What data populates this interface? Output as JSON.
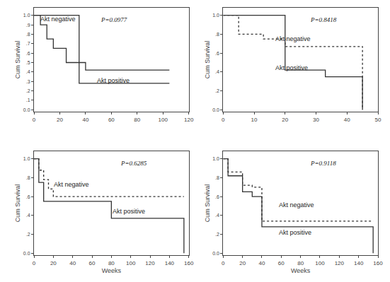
{
  "chart_data": [
    {
      "type": "line",
      "ylabel": "Cum Survival",
      "grid": false,
      "xlim": [
        0,
        120
      ],
      "ylim": [
        -0.02,
        1.08
      ],
      "xticks": [
        0,
        20,
        40,
        60,
        80,
        100,
        120
      ],
      "yticks": [
        {
          "value": 0.0,
          "label": "0.0"
        },
        {
          "value": 0.1,
          "label": ".1"
        },
        {
          "value": 0.2,
          "label": ".2"
        },
        {
          "value": 0.3,
          "label": ".3"
        },
        {
          "value": 0.4,
          "label": ".4"
        },
        {
          "value": 0.5,
          "label": ".5"
        },
        {
          "value": 0.6,
          "label": ".6"
        },
        {
          "value": 0.7,
          "label": ".7"
        },
        {
          "value": 0.8,
          "label": ".8"
        },
        {
          "value": 0.9,
          "label": ".9"
        },
        {
          "value": 1.0,
          "label": "1.0"
        }
      ],
      "annotations": [
        {
          "text": "P=0.0977"
        },
        {
          "text": "Akt negative"
        },
        {
          "text": "Akt positive"
        }
      ],
      "series": [
        {
          "x": [
            0,
            5,
            10,
            15,
            25,
            40,
            105
          ],
          "values": [
            1.0,
            0.9,
            0.75,
            0.65,
            0.5,
            0.42,
            0.42
          ],
          "line_style": "solid",
          "color": "#333333"
        },
        {
          "x": [
            0,
            35,
            105
          ],
          "values": [
            1.0,
            0.28,
            0.28
          ],
          "line_style": "solid",
          "color": "#333333"
        }
      ]
    },
    {
      "type": "line",
      "ylabel": "Cum Survival",
      "grid": false,
      "xlim": [
        0,
        50
      ],
      "ylim": [
        -0.02,
        1.08
      ],
      "xticks": [
        0,
        10,
        20,
        30,
        40,
        50
      ],
      "yticks": [
        {
          "value": 0.0,
          "label": "0.0"
        },
        {
          "value": 0.2,
          "label": ".2"
        },
        {
          "value": 0.4,
          "label": ".4"
        },
        {
          "value": 0.6,
          "label": ".6"
        },
        {
          "value": 0.8,
          "label": ".8"
        },
        {
          "value": 1.0,
          "label": "1.0"
        }
      ],
      "annotations": [
        {
          "text": "P=0.8418"
        },
        {
          "text": "Akt negative"
        },
        {
          "text": "Akt positive"
        }
      ],
      "series": [
        {
          "x": [
            0,
            5,
            13,
            20,
            45
          ],
          "values": [
            1.0,
            0.8,
            0.75,
            0.67,
            0.0
          ],
          "line_style": "dotted",
          "color": "#333333"
        },
        {
          "x": [
            0,
            20,
            33,
            45
          ],
          "values": [
            1.0,
            0.42,
            0.35,
            0.0
          ],
          "line_style": "solid",
          "color": "#333333"
        }
      ]
    },
    {
      "type": "line",
      "ylabel": "Cum Survival",
      "xlabel": "Weeks",
      "grid": false,
      "xlim": [
        0,
        160
      ],
      "ylim": [
        -0.02,
        1.08
      ],
      "xticks": [
        0,
        20,
        40,
        60,
        80,
        100,
        120,
        140,
        160
      ],
      "yticks": [
        {
          "value": 0.0,
          "label": "0.0"
        },
        {
          "value": 0.2,
          "label": ".2"
        },
        {
          "value": 0.4,
          "label": ".4"
        },
        {
          "value": 0.6,
          "label": ".6"
        },
        {
          "value": 0.8,
          "label": ".8"
        },
        {
          "value": 1.0,
          "label": "1.0"
        }
      ],
      "annotations": [
        {
          "text": "P=0.6285"
        },
        {
          "text": "Akt negative"
        },
        {
          "text": "Akt positive"
        }
      ],
      "series": [
        {
          "x": [
            0,
            5,
            10,
            15,
            20,
            80,
            155
          ],
          "values": [
            1.0,
            0.88,
            0.78,
            0.68,
            0.6,
            0.6,
            0.6
          ],
          "line_style": "dotted",
          "color": "#333333"
        },
        {
          "x": [
            0,
            5,
            10,
            80,
            155
          ],
          "values": [
            1.0,
            0.75,
            0.55,
            0.37,
            0.0
          ],
          "line_style": "solid",
          "color": "#333333"
        }
      ]
    },
    {
      "type": "line",
      "ylabel": "Cum Survival",
      "xlabel": "Weeks",
      "grid": false,
      "xlim": [
        0,
        160
      ],
      "ylim": [
        -0.02,
        1.08
      ],
      "xticks": [
        0,
        20,
        40,
        60,
        80,
        100,
        120,
        140,
        160
      ],
      "yticks": [
        {
          "value": 0.0,
          "label": "0.0"
        },
        {
          "value": 0.2,
          "label": ".2"
        },
        {
          "value": 0.4,
          "label": ".4"
        },
        {
          "value": 0.6,
          "label": ".6"
        },
        {
          "value": 0.8,
          "label": ".8"
        },
        {
          "value": 1.0,
          "label": "1.0"
        }
      ],
      "annotations": [
        {
          "text": "P=0.9118"
        },
        {
          "text": "Akt negative"
        },
        {
          "text": "Akt positive"
        }
      ],
      "series": [
        {
          "x": [
            0,
            5,
            20,
            30,
            40,
            80,
            155
          ],
          "values": [
            1.0,
            0.86,
            0.72,
            0.7,
            0.34,
            0.34,
            0.34
          ],
          "line_style": "dotted",
          "color": "#333333"
        },
        {
          "x": [
            0,
            5,
            20,
            30,
            40,
            80,
            155
          ],
          "values": [
            1.0,
            0.82,
            0.65,
            0.6,
            0.28,
            0.28,
            0.0
          ],
          "line_style": "solid",
          "color": "#333333"
        }
      ]
    }
  ]
}
